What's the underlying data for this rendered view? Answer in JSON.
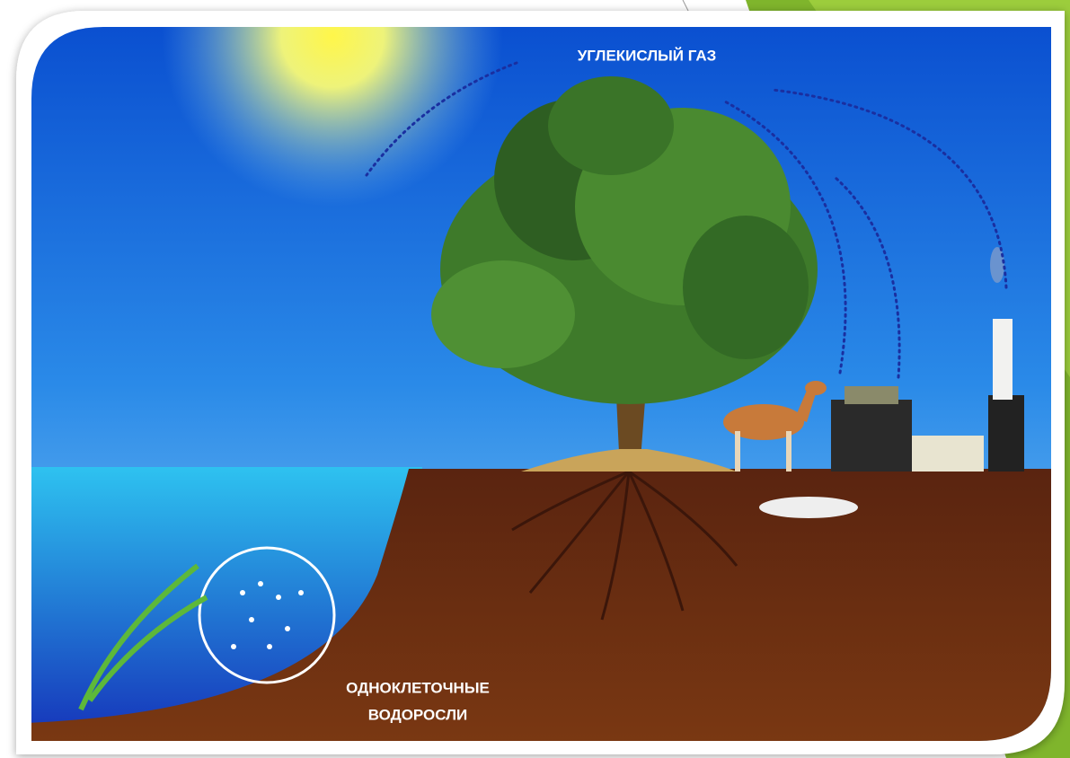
{
  "labels": {
    "carbon_dioxide": "УГЛЕКИСЛЫЙ ГАЗ",
    "algae": [
      "ОДНОКЛЕТОЧНЫЕ",
      "ВОДОРОСЛИ"
    ]
  }
}
